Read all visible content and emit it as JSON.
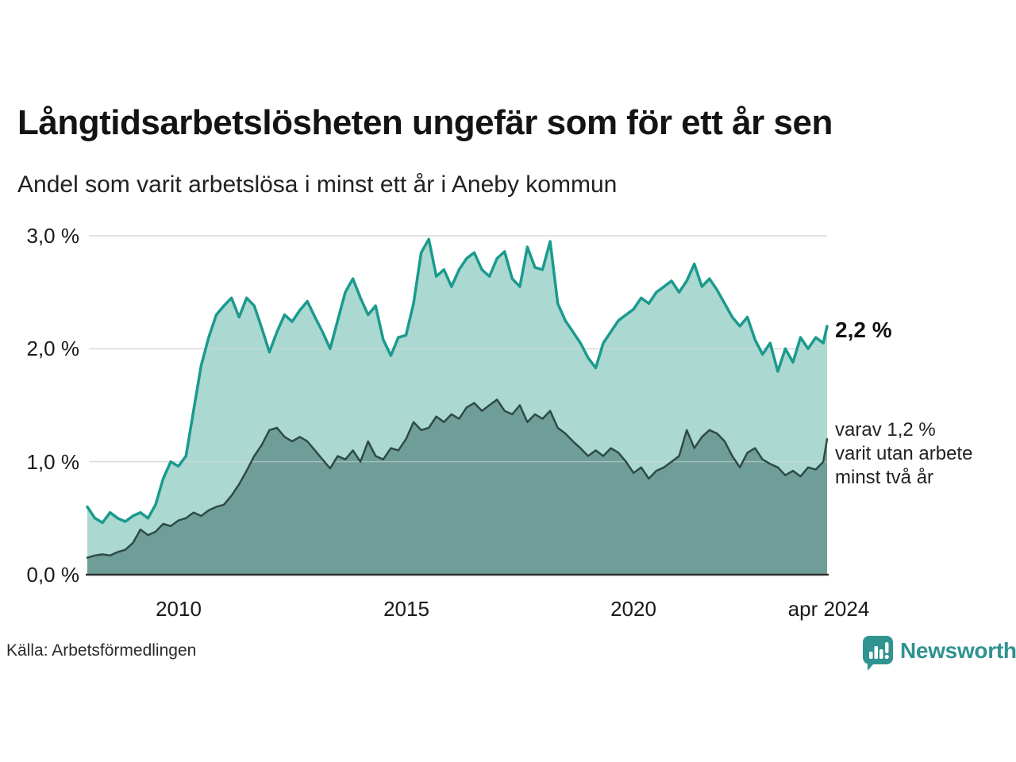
{
  "header": {
    "title": "Långtidsarbetslösheten ungefär som för ett år sen",
    "subtitle": "Andel som varit arbetslösa i minst ett år i Aneby kommun"
  },
  "chart_data": {
    "type": "area",
    "title": "Långtidsarbetslösheten ungefär som för ett år sen",
    "subtitle": "Andel som varit arbetslösa i minst ett år i Aneby kommun",
    "xlabel": "",
    "ylabel": "",
    "x_start_year": 2008.0,
    "x_end_year": 2024.25,
    "x_step_years": 0.166667,
    "ylim": [
      0,
      3.15
    ],
    "grid": "horizontal",
    "y_ticks": [
      {
        "label": "3,0 %",
        "value": 3.0
      },
      {
        "label": "2,0 %",
        "value": 2.0
      },
      {
        "label": "1,0 %",
        "value": 1.0
      },
      {
        "label": "0,0 %",
        "value": 0.0
      }
    ],
    "x_ticks": [
      {
        "label": "2010",
        "year": 2010
      },
      {
        "label": "2015",
        "year": 2015
      },
      {
        "label": "2020",
        "year": 2020
      },
      {
        "label": "apr 2024",
        "year": 2024.25
      }
    ],
    "series": [
      {
        "name": "Andel som varit arbetslösa i minst ett år",
        "line_color": "#1b9a8e",
        "fill_color": "#abd8d0",
        "line_width": 3.5,
        "end_value_label": "2,2 %",
        "values": [
          0.6,
          0.5,
          0.46,
          0.55,
          0.5,
          0.47,
          0.52,
          0.55,
          0.5,
          0.62,
          0.85,
          1.0,
          0.96,
          1.05,
          1.45,
          1.85,
          2.1,
          2.3,
          2.38,
          2.45,
          2.28,
          2.45,
          2.38,
          2.18,
          1.97,
          2.15,
          2.3,
          2.24,
          2.34,
          2.42,
          2.28,
          2.15,
          2.0,
          2.25,
          2.5,
          2.62,
          2.45,
          2.3,
          2.38,
          2.08,
          1.94,
          2.1,
          2.12,
          2.4,
          2.85,
          2.97,
          2.64,
          2.7,
          2.55,
          2.7,
          2.8,
          2.85,
          2.7,
          2.64,
          2.8,
          2.86,
          2.62,
          2.55,
          2.9,
          2.72,
          2.7,
          2.95,
          2.4,
          2.25,
          2.15,
          2.05,
          1.92,
          1.83,
          2.05,
          2.15,
          2.25,
          2.3,
          2.35,
          2.45,
          2.4,
          2.5,
          2.55,
          2.6,
          2.5,
          2.6,
          2.75,
          2.55,
          2.62,
          2.52,
          2.4,
          2.28,
          2.2,
          2.28,
          2.08,
          1.95,
          2.05,
          1.8,
          2.0,
          1.88,
          2.1,
          2.0,
          2.1,
          2.05,
          2.2
        ]
      },
      {
        "name": "varav utan arbete minst två år",
        "line_color": "#2f4b46",
        "fill_color": "#6f9e99",
        "line_width": 2.5,
        "end_value_label": "1,2 %",
        "values": [
          0.15,
          0.17,
          0.18,
          0.17,
          0.2,
          0.22,
          0.28,
          0.4,
          0.35,
          0.38,
          0.45,
          0.43,
          0.48,
          0.5,
          0.55,
          0.52,
          0.57,
          0.6,
          0.62,
          0.7,
          0.8,
          0.92,
          1.05,
          1.15,
          1.28,
          1.3,
          1.22,
          1.18,
          1.22,
          1.18,
          1.1,
          1.02,
          0.94,
          1.05,
          1.02,
          1.1,
          1.0,
          1.18,
          1.05,
          1.02,
          1.12,
          1.1,
          1.2,
          1.35,
          1.28,
          1.3,
          1.4,
          1.35,
          1.42,
          1.38,
          1.48,
          1.52,
          1.45,
          1.5,
          1.55,
          1.45,
          1.42,
          1.5,
          1.35,
          1.42,
          1.38,
          1.45,
          1.3,
          1.25,
          1.18,
          1.12,
          1.05,
          1.1,
          1.05,
          1.12,
          1.08,
          1.0,
          0.9,
          0.95,
          0.85,
          0.92,
          0.95,
          1.0,
          1.05,
          1.28,
          1.12,
          1.22,
          1.28,
          1.25,
          1.18,
          1.05,
          0.95,
          1.08,
          1.12,
          1.02,
          0.98,
          0.95,
          0.88,
          0.92,
          0.87,
          0.95,
          0.93,
          1.0,
          1.2
        ]
      }
    ],
    "annotations": {
      "latest_value": "2,2 %",
      "secondary_line1": "varav 1,2 %",
      "secondary_line2": "varit utan arbete",
      "secondary_line3": "minst två år"
    },
    "legend_position": "right-annotations"
  },
  "footer": {
    "source": "Källa: Arbetsförmedlingen",
    "brand": "Newsworthy"
  },
  "colors": {
    "accent_teal": "#1b9a8e",
    "light_fill": "#abd8d0",
    "dark_fill": "#6f9e99",
    "dark_line": "#2f4b46",
    "gridline": "#dcdcdc",
    "axis_line": "#2e2e2e",
    "brand_teal": "#2f9390"
  }
}
